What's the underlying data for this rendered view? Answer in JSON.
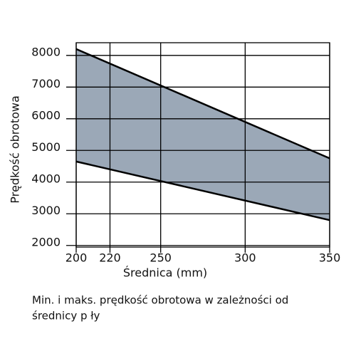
{
  "chart_data": {
    "type": "area",
    "x_label": "Średnica (mm)",
    "y_label": "Prędkość obrotowa",
    "caption": [
      "Min. i maks. prędkość obrotowa w zależności od",
      "średnicy p ły"
    ],
    "x": [
      200,
      350
    ],
    "series": [
      {
        "color": "#000000",
        "values": [
          8200,
          4750
        ]
      },
      {
        "color": "#000000",
        "values": [
          4650,
          2800
        ]
      }
    ],
    "fill": "#9ba8b7",
    "xlim": [
      200,
      350
    ],
    "xticks": [
      200,
      220,
      250,
      300,
      350
    ],
    "ylim": [
      1950,
      8400
    ],
    "yticks": [
      2000,
      3000,
      4000,
      5000,
      6000,
      7000,
      8000
    ],
    "grid": true
  }
}
